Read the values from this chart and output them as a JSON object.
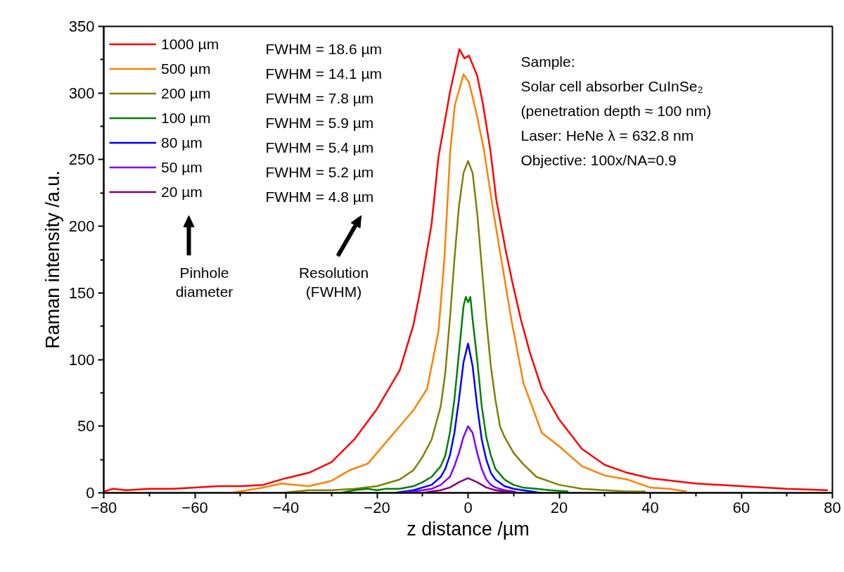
{
  "chart_data": {
    "type": "line",
    "xlabel": "z distance /µm",
    "ylabel": "Raman intensity /a.u.",
    "xlim": [
      -80,
      80
    ],
    "xticks": [
      -80,
      -60,
      -40,
      -20,
      0,
      20,
      40,
      60,
      80
    ],
    "ylim": [
      0,
      350
    ],
    "yticks": [
      0,
      50,
      100,
      150,
      200,
      250,
      300,
      350
    ],
    "grid": false,
    "legend": "top left",
    "marker": "none",
    "line_style": "solid",
    "annotations": [
      "FWHM = 18.6 µm",
      "FWHM = 14.1 µm",
      "FWHM = 7.8 µm",
      "FWHM = 5.9 µm",
      "FWHM = 5.4 µm",
      "FWHM = 5.2 µm",
      "FWHM = 4.8 µm",
      "Pinhole\ndiameter",
      "Resolution\n(FWHM)",
      "Sample:",
      "Solar cell absorber CuInSe₂",
      "(penetration depth ≈ 100 nm)",
      "Laser: HeNe λ = 632.8 nm",
      "Objective:  100x/NA=0.9"
    ],
    "series": [
      {
        "name": "1000 µm",
        "color": "#ff0000",
        "x": [
          -80,
          -78,
          -75,
          -70,
          -65,
          -60,
          -55,
          -50,
          -45,
          -40,
          -35,
          -30,
          -25,
          -20,
          -15,
          -12,
          -10.6,
          -8,
          -6.5,
          -3.9,
          -1.9,
          -0.8,
          0.2,
          2,
          3.2,
          4.9,
          6.2,
          8.2,
          9.6,
          11.6,
          13.6,
          16.2,
          20,
          25,
          30,
          35,
          40,
          50,
          60,
          70,
          79
        ],
        "values": [
          1,
          3,
          2,
          3,
          3,
          4,
          5,
          5,
          6,
          11,
          15,
          23,
          40,
          63,
          92,
          126,
          150,
          202,
          252,
          302,
          333,
          326,
          328,
          313,
          293,
          257,
          220,
          183,
          160,
          130,
          105,
          78,
          55,
          33,
          21,
          15,
          11,
          7,
          5,
          3,
          2
        ]
      },
      {
        "name": "500 µm",
        "color": "#ff8000",
        "x": [
          -52,
          -45,
          -41,
          -35,
          -30,
          -26,
          -22,
          -20,
          -15,
          -12,
          -9,
          -6.5,
          -5.2,
          -3.9,
          -2.9,
          -1,
          0.2,
          1.9,
          3.5,
          5.6,
          7.6,
          9.6,
          12.2,
          16.2,
          20,
          25,
          30,
          35,
          40,
          44,
          48
        ],
        "values": [
          0,
          4,
          7,
          5,
          9,
          17,
          22,
          30,
          50,
          62,
          78,
          121,
          176,
          257,
          291,
          314,
          308,
          284,
          257,
          210,
          169,
          128,
          82,
          45,
          35,
          20,
          13,
          10,
          4,
          3,
          1
        ]
      },
      {
        "name": "200 µm",
        "color": "#808000",
        "x": [
          -41,
          -35,
          -30,
          -25,
          -20,
          -15,
          -12,
          -10,
          -8,
          -6,
          -5,
          -4,
          -3,
          -2,
          -1,
          0,
          1,
          2,
          3,
          4,
          5,
          6,
          7,
          8,
          10,
          12,
          15,
          20,
          25,
          30,
          35,
          39
        ],
        "values": [
          0,
          2,
          2,
          3,
          5,
          10,
          17,
          27,
          40,
          65,
          90,
          130,
          175,
          215,
          240,
          249,
          240,
          210,
          170,
          130,
          95,
          70,
          50,
          42,
          30,
          22,
          12,
          6,
          3,
          2,
          1,
          1
        ]
      },
      {
        "name": "100 µm",
        "color": "#008000",
        "x": [
          -28,
          -25,
          -22,
          -20,
          -18,
          -15,
          -12,
          -10,
          -8,
          -6,
          -5,
          -4,
          -3,
          -2,
          -1,
          -0.5,
          0,
          0.5,
          1,
          2,
          3,
          4,
          5,
          6,
          8,
          10,
          12,
          15,
          18,
          22
        ],
        "values": [
          0,
          2,
          3,
          2,
          3,
          3,
          5,
          8,
          12,
          20,
          28,
          45,
          70,
          105,
          140,
          147,
          143,
          147,
          130,
          100,
          65,
          42,
          28,
          18,
          10,
          6,
          4,
          3,
          2,
          1
        ]
      },
      {
        "name": "80 µm",
        "color": "#0000ff",
        "x": [
          -16,
          -14,
          -12,
          -10,
          -8,
          -6,
          -5,
          -4,
          -3,
          -2,
          -1,
          0,
          1,
          2,
          3,
          4,
          5,
          6,
          8,
          10,
          12,
          14,
          16
        ],
        "values": [
          0,
          1,
          2,
          4,
          6,
          12,
          18,
          28,
          45,
          70,
          98,
          112,
          95,
          65,
          40,
          25,
          15,
          10,
          5,
          3,
          2,
          1,
          0
        ]
      },
      {
        "name": "50 µm",
        "color": "#8000ff",
        "x": [
          -15,
          -12,
          -10,
          -8,
          -6,
          -4,
          -3,
          -2,
          -1,
          0,
          1,
          2,
          3,
          4,
          5,
          6,
          8,
          10,
          11
        ],
        "values": [
          0,
          1,
          2,
          3,
          6,
          12,
          20,
          30,
          42,
          50,
          45,
          30,
          18,
          10,
          6,
          4,
          2,
          1,
          0
        ]
      },
      {
        "name": "20 µm",
        "color": "#800080",
        "x": [
          -10,
          -8,
          -6,
          -4,
          -2,
          0,
          2,
          4,
          6,
          8,
          10
        ],
        "values": [
          0,
          1,
          2,
          4,
          8,
          11,
          8,
          4,
          2,
          1,
          0
        ]
      }
    ]
  }
}
